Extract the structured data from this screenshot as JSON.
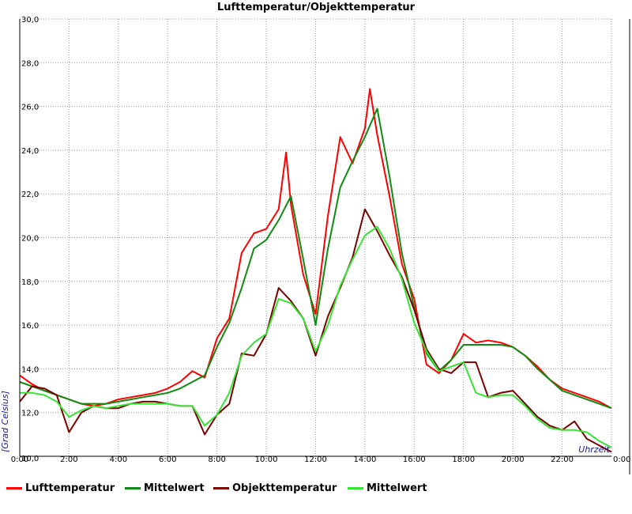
{
  "chart_data": {
    "type": "line",
    "title": "Lufttemperatur/Objekttemperatur",
    "xlabel": "Uhrzeit",
    "ylabel": "[Grad Celsius]",
    "xlim": [
      0,
      24
    ],
    "ylim": [
      10,
      30
    ],
    "x_ticks": [
      "0:00",
      "2:00",
      "4:00",
      "6:00",
      "8:00",
      "10:00",
      "12:00",
      "14:00",
      "16:00",
      "18:00",
      "20:00",
      "22:00",
      "0:00"
    ],
    "y_ticks": [
      "10,0",
      "12,0",
      "14,0",
      "16,0",
      "18,0",
      "20,0",
      "22,0",
      "24,0",
      "26,0",
      "28,0",
      "30,0"
    ],
    "grid": true,
    "legend_position": "bottom",
    "series": [
      {
        "name": "Lufttemperatur",
        "color": "#ff0000",
        "x": [
          0,
          0.5,
          1,
          1.5,
          2,
          2.5,
          3,
          3.5,
          4,
          4.5,
          5,
          5.5,
          6,
          6.5,
          7,
          7.5,
          8,
          8.5,
          9,
          9.5,
          10,
          10.5,
          10.8,
          11,
          11.5,
          12,
          12.5,
          13,
          13.5,
          14,
          14.2,
          14.5,
          15,
          15.5,
          16,
          16.5,
          17,
          17.5,
          18,
          18.5,
          19,
          19.5,
          20,
          20.5,
          21,
          21.5,
          22,
          22.5,
          23,
          23.5,
          24
        ],
        "y": [
          13.7,
          13.3,
          13.0,
          12.8,
          12.6,
          12.4,
          12.3,
          12.4,
          12.6,
          12.7,
          12.8,
          12.9,
          13.1,
          13.4,
          13.9,
          13.6,
          15.4,
          16.3,
          19.3,
          20.2,
          20.4,
          21.3,
          23.9,
          21.5,
          18.3,
          16.5,
          21.0,
          24.6,
          23.4,
          25.0,
          26.8,
          24.7,
          21.9,
          18.8,
          17.2,
          14.2,
          13.8,
          14.4,
          15.6,
          15.2,
          15.3,
          15.2,
          15.0,
          14.6,
          14.1,
          13.5,
          13.1,
          12.9,
          12.7,
          12.5,
          12.2
        ]
      },
      {
        "name": "Mittelwert",
        "color": "#118a11",
        "x": [
          0,
          0.5,
          1,
          1.5,
          2,
          2.5,
          3,
          3.5,
          4,
          4.5,
          5,
          5.5,
          6,
          6.5,
          7,
          7.5,
          8,
          8.5,
          9,
          9.5,
          10,
          10.5,
          11,
          11.5,
          12,
          12.5,
          13,
          13.5,
          14,
          14.5,
          15,
          15.5,
          16,
          16.5,
          17,
          17.5,
          18,
          18.5,
          19,
          19.5,
          20,
          20.5,
          21,
          21.5,
          22,
          22.5,
          23,
          23.5,
          24
        ],
        "y": [
          13.4,
          13.2,
          13.0,
          12.8,
          12.6,
          12.4,
          12.4,
          12.4,
          12.5,
          12.6,
          12.7,
          12.8,
          12.9,
          13.1,
          13.4,
          13.7,
          15.0,
          16.1,
          17.7,
          19.5,
          19.9,
          20.8,
          21.9,
          19.0,
          16.0,
          19.5,
          22.3,
          23.5,
          24.6,
          25.9,
          22.8,
          19.3,
          16.8,
          14.7,
          13.9,
          14.4,
          15.1,
          15.1,
          15.1,
          15.1,
          15.0,
          14.6,
          14.0,
          13.5,
          13.0,
          12.8,
          12.6,
          12.4,
          12.2
        ]
      },
      {
        "name": "Objekttemperatur",
        "color": "#7a0000",
        "x": [
          0,
          0.5,
          1,
          1.5,
          2,
          2.5,
          3,
          3.5,
          4,
          4.5,
          5,
          5.5,
          6,
          6.5,
          7,
          7.5,
          8,
          8.5,
          9,
          9.5,
          10,
          10.5,
          11,
          11.5,
          12,
          12.5,
          13,
          13.5,
          14,
          14.5,
          15,
          15.5,
          16,
          16.5,
          17,
          17.5,
          18,
          18.5,
          19,
          19.5,
          20,
          20.5,
          21,
          21.5,
          22,
          22.5,
          23,
          23.5,
          24
        ],
        "y": [
          12.5,
          13.2,
          13.1,
          12.8,
          11.1,
          12.0,
          12.3,
          12.2,
          12.2,
          12.4,
          12.5,
          12.5,
          12.4,
          12.3,
          12.3,
          11.0,
          11.9,
          12.4,
          14.7,
          14.6,
          15.6,
          17.7,
          17.1,
          16.3,
          14.6,
          16.4,
          17.7,
          19.1,
          21.3,
          20.3,
          19.2,
          18.2,
          16.7,
          14.9,
          14.0,
          13.8,
          14.3,
          14.3,
          12.7,
          12.9,
          13.0,
          12.4,
          11.8,
          11.4,
          11.2,
          11.6,
          10.8,
          10.5,
          10.2
        ]
      },
      {
        "name": "Mittelwert",
        "color": "#33e633",
        "x": [
          0,
          0.5,
          1,
          1.5,
          2,
          2.5,
          3,
          3.5,
          4,
          4.5,
          5,
          5.5,
          6,
          6.5,
          7,
          7.5,
          8,
          8.5,
          9,
          9.5,
          10,
          10.5,
          11,
          11.5,
          12,
          12.5,
          13,
          13.5,
          14,
          14.5,
          15,
          15.5,
          16,
          16.5,
          17,
          17.5,
          18,
          18.5,
          19,
          19.5,
          20,
          20.5,
          21,
          21.5,
          22,
          22.5,
          23,
          23.5,
          24
        ],
        "y": [
          12.9,
          12.9,
          12.8,
          12.5,
          11.8,
          12.1,
          12.3,
          12.2,
          12.3,
          12.4,
          12.4,
          12.4,
          12.4,
          12.3,
          12.3,
          11.4,
          11.9,
          12.9,
          14.6,
          15.2,
          15.6,
          17.2,
          17.0,
          16.3,
          14.8,
          16.0,
          17.8,
          19.0,
          20.1,
          20.5,
          19.5,
          18.1,
          16.1,
          14.8,
          13.9,
          14.1,
          14.3,
          12.9,
          12.7,
          12.8,
          12.8,
          12.3,
          11.7,
          11.3,
          11.2,
          11.2,
          11.1,
          10.7,
          10.4
        ]
      }
    ]
  }
}
